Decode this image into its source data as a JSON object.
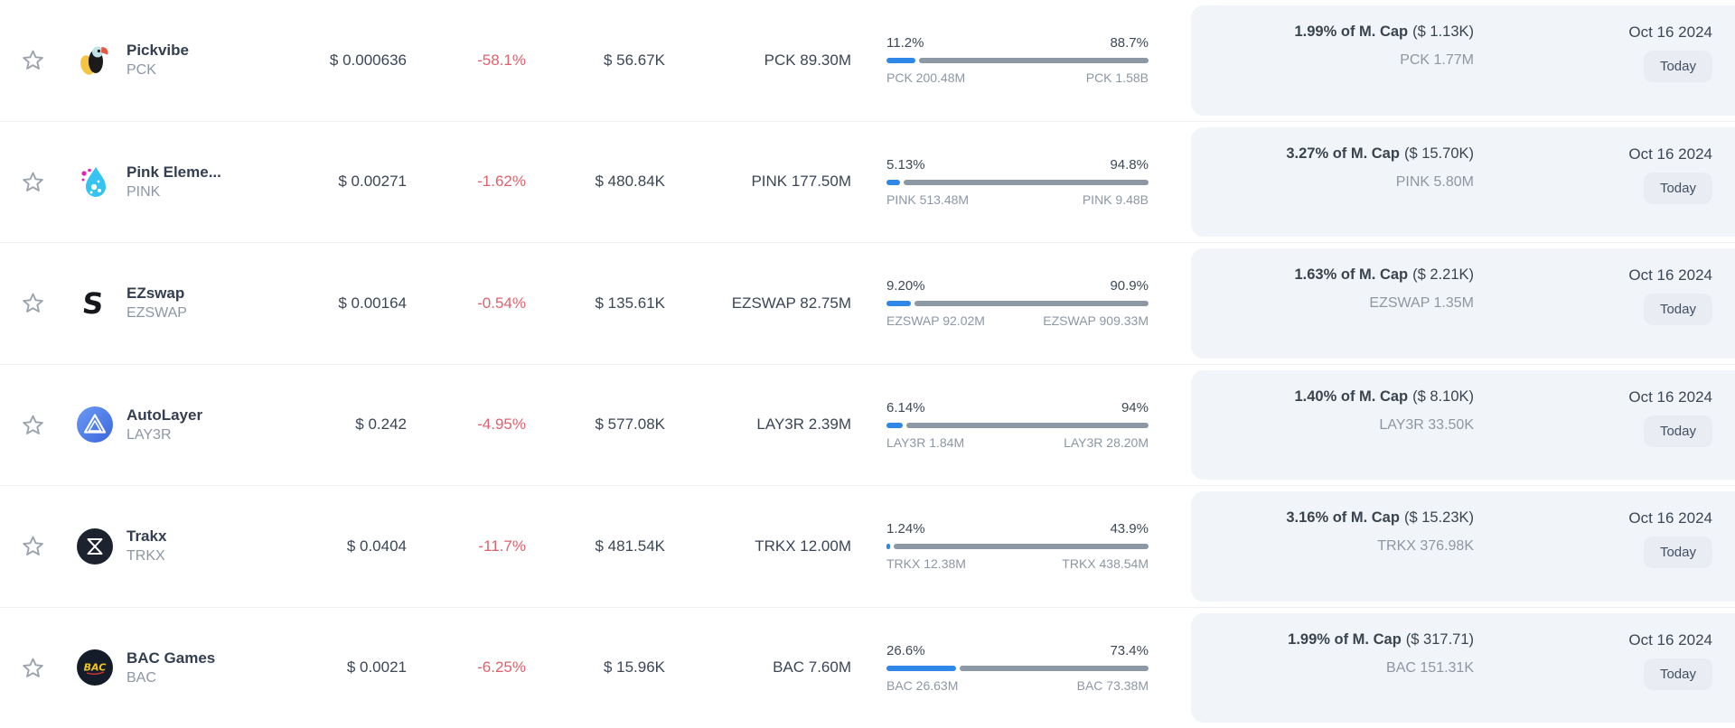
{
  "colors": {
    "bar_fill_blue": "#2f87e8",
    "bar_rest_gray": "#8d98a5",
    "negative_red": "#e2606c",
    "panel_bg": "#f1f4f8",
    "badge_bg": "#e9edf3",
    "text_dark": "#3b4656",
    "text_gray": "#8d97a4"
  },
  "rows": [
    {
      "icon": "pickvibe-toucan-logo",
      "name": "Pickvibe",
      "symbol": "PCK",
      "price": "$ 0.000636",
      "change": "-58.1%",
      "volume": "$ 56.67K",
      "amount": "PCK 89.30M",
      "bar": {
        "left_pct": "11.2%",
        "right_pct": "88.7%",
        "left_label": "PCK 200.48M",
        "right_label": "PCK 1.58B",
        "fill": 11.2
      },
      "panel": {
        "bold": "1.99% of M. Cap",
        "paren": "($ 1.13K)",
        "sub": "PCK 1.77M",
        "date": "Oct 16 2024",
        "badge": "Today"
      }
    },
    {
      "icon": "pink-droplet-logo",
      "name": "Pink Eleme...",
      "symbol": "PINK",
      "price": "$ 0.00271",
      "change": "-1.62%",
      "volume": "$ 480.84K",
      "amount": "PINK 177.50M",
      "bar": {
        "left_pct": "5.13%",
        "right_pct": "94.8%",
        "left_label": "PINK 513.48M",
        "right_label": "PINK 9.48B",
        "fill": 5.13
      },
      "panel": {
        "bold": "3.27% of M. Cap",
        "paren": "($ 15.70K)",
        "sub": "PINK 5.80M",
        "date": "Oct 16 2024",
        "badge": "Today"
      }
    },
    {
      "icon": "ezswap-black-s-logo",
      "name": "EZswap",
      "symbol": "EZSWAP",
      "price": "$ 0.00164",
      "change": "-0.54%",
      "volume": "$ 135.61K",
      "amount": "EZSWAP 82.75M",
      "bar": {
        "left_pct": "9.20%",
        "right_pct": "90.9%",
        "left_label": "EZSWAP 92.02M",
        "right_label": "EZSWAP 909.33M",
        "fill": 9.2
      },
      "panel": {
        "bold": "1.63% of M. Cap",
        "paren": "($ 2.21K)",
        "sub": "EZSWAP 1.35M",
        "date": "Oct 16 2024",
        "badge": "Today"
      }
    },
    {
      "icon": "autolayer-blue-triangle-logo",
      "name": "AutoLayer",
      "symbol": "LAY3R",
      "price": "$ 0.242",
      "change": "-4.95%",
      "volume": "$ 577.08K",
      "amount": "LAY3R 2.39M",
      "bar": {
        "left_pct": "6.14%",
        "right_pct": "94%",
        "left_label": "LAY3R 1.84M",
        "right_label": "LAY3R 28.20M",
        "fill": 6.14
      },
      "panel": {
        "bold": "1.40% of M. Cap",
        "paren": "($ 8.10K)",
        "sub": "LAY3R 33.50K",
        "date": "Oct 16 2024",
        "badge": "Today"
      }
    },
    {
      "icon": "trakx-black-x-logo",
      "name": "Trakx",
      "symbol": "TRKX",
      "price": "$ 0.0404",
      "change": "-11.7%",
      "volume": "$ 481.54K",
      "amount": "TRKX 12.00M",
      "bar": {
        "left_pct": "1.24%",
        "right_pct": "43.9%",
        "left_label": "TRKX 12.38M",
        "right_label": "TRKX 438.54M",
        "fill": 1.24
      },
      "panel": {
        "bold": "3.16% of M. Cap",
        "paren": "($ 15.23K)",
        "sub": "TRKX 376.98K",
        "date": "Oct 16 2024",
        "badge": "Today"
      }
    },
    {
      "icon": "bac-games-navy-logo",
      "name": "BAC Games",
      "symbol": "BAC",
      "price": "$ 0.0021",
      "change": "-6.25%",
      "volume": "$ 15.96K",
      "amount": "BAC 7.60M",
      "bar": {
        "left_pct": "26.6%",
        "right_pct": "73.4%",
        "left_label": "BAC 26.63M",
        "right_label": "BAC 73.38M",
        "fill": 26.6
      },
      "panel": {
        "bold": "1.99% of M. Cap",
        "paren": "($ 317.71)",
        "sub": "BAC 151.31K",
        "date": "Oct 16 2024",
        "badge": "Today"
      }
    }
  ]
}
